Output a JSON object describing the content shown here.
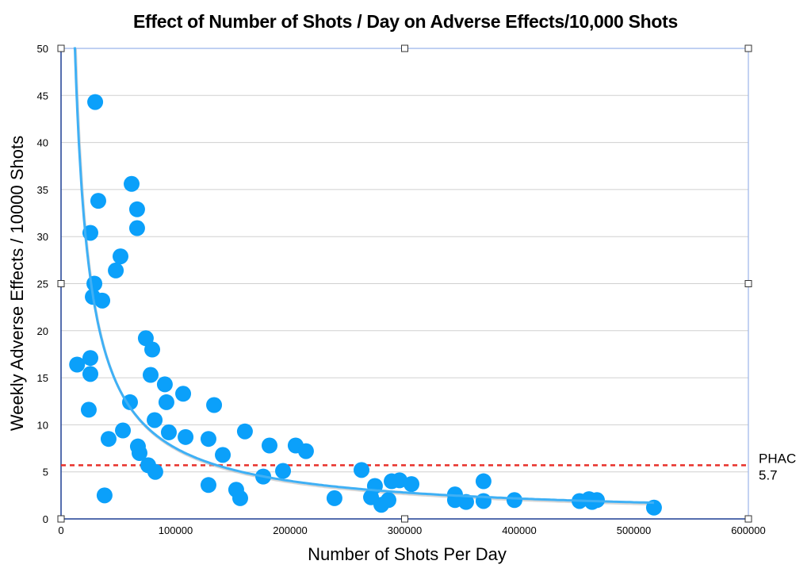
{
  "chart_data": {
    "type": "scatter",
    "title": "Effect of Number of Shots / Day on Adverse Effects/10,000 Shots",
    "xlabel": "Number of Shots Per Day",
    "ylabel": "Weekly Adverse Effects / 10000 Shots",
    "xlim": [
      0,
      600000
    ],
    "ylim": [
      0,
      50
    ],
    "x_ticks": [
      "0",
      "100000",
      "200000",
      "300000",
      "400000",
      "500000",
      "600000"
    ],
    "y_ticks": [
      "0",
      "5",
      "10",
      "15",
      "20",
      "25",
      "30",
      "35",
      "40",
      "45",
      "50"
    ],
    "grid": "horizontal",
    "colors": {
      "points": "#0ba0fa",
      "trend": "#3fb0f5",
      "reference": "#e8302a",
      "axis": "#1d3f94",
      "frame": "#9bb5ea",
      "grid": "#d0d0d0"
    },
    "series": [
      {
        "name": "Weekly observations",
        "x": [
          14000,
          25600,
          25600,
          24200,
          29800,
          32500,
          25600,
          29100,
          27700,
          36000,
          38000,
          41500,
          47800,
          51900,
          54000,
          60200,
          61600,
          66400,
          66400,
          67100,
          68500,
          74000,
          79600,
          78200,
          76100,
          82300,
          81700,
          90600,
          92000,
          94100,
          106600,
          108700,
          128700,
          128700,
          133600,
          141200,
          152900,
          156400,
          160500,
          176500,
          182000,
          193800,
          204800,
          213800,
          238700,
          262300,
          270600,
          274000,
          279600,
          285800,
          288600,
          295500,
          305900,
          343900,
          343900,
          353600,
          368800,
          368800,
          395800,
          452600,
          460900,
          463600,
          467800,
          517600
        ],
        "y": [
          16.4,
          17.1,
          15.4,
          11.6,
          44.3,
          33.8,
          30.4,
          25.0,
          23.6,
          23.2,
          2.5,
          8.5,
          26.4,
          27.9,
          9.4,
          12.4,
          35.6,
          32.9,
          30.9,
          7.7,
          7.0,
          19.2,
          18.0,
          15.3,
          5.7,
          5.0,
          10.5,
          14.3,
          12.4,
          9.2,
          13.3,
          8.7,
          8.5,
          3.6,
          12.1,
          6.8,
          3.1,
          2.2,
          9.3,
          4.5,
          7.8,
          5.1,
          7.8,
          7.2,
          2.2,
          5.2,
          2.3,
          3.5,
          1.5,
          2.0,
          4.0,
          4.1,
          3.7,
          2.6,
          2.0,
          1.8,
          4.0,
          1.9,
          2.0,
          1.9,
          2.1,
          1.8,
          2.0,
          1.2
        ]
      }
    ],
    "trendline": {
      "type": "power",
      "a": 232500,
      "b": -0.898,
      "x_range": [
        11000,
        517600
      ]
    },
    "reference_line": {
      "y": 5.7,
      "label_line1": "PHAC",
      "label_line2": "5.7",
      "style": "dashed"
    }
  }
}
